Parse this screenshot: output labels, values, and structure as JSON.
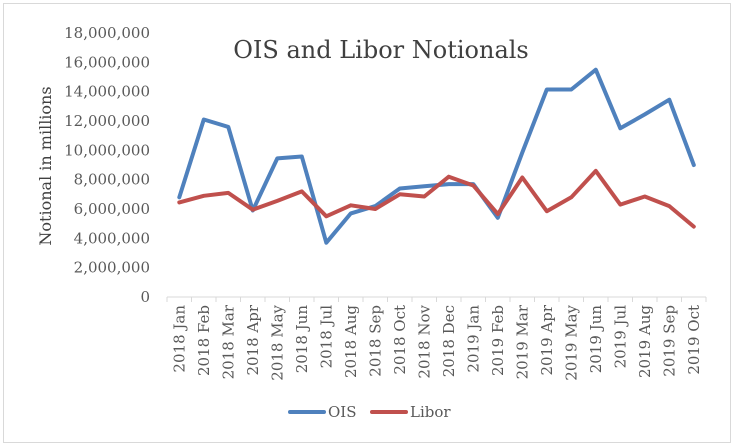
{
  "chart_data": {
    "type": "line",
    "title": "OIS and Libor Notionals",
    "xlabel": "",
    "ylabel": "Notional in millions",
    "ylim": [
      0,
      18000000
    ],
    "yticks": [
      "0",
      "2,000,000",
      "4,000,000",
      "6,000,000",
      "8,000,000",
      "10,000,000",
      "12,000,000",
      "14,000,000",
      "16,000,000",
      "18,000,000"
    ],
    "categories": [
      "2018 Jan",
      "2018 Feb",
      "2018 Mar",
      "2018 Apr",
      "2018 May",
      "2018 Jun",
      "2018 Jul",
      "2018 Aug",
      "2018 Sep",
      "2018 Oct",
      "2018 Nov",
      "2018 Dec",
      "2019 Jan",
      "2019 Feb",
      "2019 Mar",
      "2019 Apr",
      "2019 May",
      "2019 Jun",
      "2019 Jul",
      "2019 Aug",
      "2019 Sep",
      "2019 Oct"
    ],
    "series": [
      {
        "name": "OIS",
        "color": "#4f81bd",
        "values": [
          6800000,
          12100000,
          11600000,
          5900000,
          9450000,
          9580000,
          3700000,
          5700000,
          6200000,
          7400000,
          7550000,
          7700000,
          7700000,
          5400000,
          9850000,
          14150000,
          14150000,
          15500000,
          11500000,
          12450000,
          13450000,
          9000000
        ]
      },
      {
        "name": "Libor",
        "color": "#c0504d",
        "values": [
          6450000,
          6900000,
          7100000,
          5950000,
          6550000,
          7200000,
          5500000,
          6250000,
          6000000,
          7000000,
          6850000,
          8200000,
          7600000,
          5650000,
          8150000,
          5850000,
          6800000,
          8600000,
          6300000,
          6850000,
          6200000,
          4800000
        ]
      }
    ],
    "grid": false,
    "legend": "bottom"
  }
}
